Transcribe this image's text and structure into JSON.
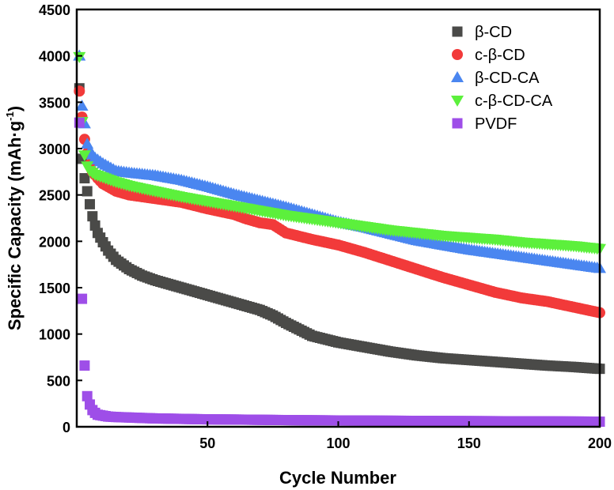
{
  "chart_data": {
    "type": "scatter",
    "xlabel": "Cycle Number",
    "ylabel": "Specific Capacity (mAh·g",
    "ylabel_sup": "-1",
    "ylabel_close": ")",
    "xlim": [
      0,
      200
    ],
    "ylim": [
      0,
      4500
    ],
    "x_ticks": [
      50,
      100,
      150,
      200
    ],
    "y_ticks": [
      0,
      500,
      1000,
      1500,
      2000,
      2500,
      3000,
      3500,
      4000,
      4500
    ],
    "grid": false,
    "legend_position": "top-right",
    "series": [
      {
        "name": "β-CD",
        "marker": "square",
        "color": "#4a4a48",
        "points": [
          [
            1,
            3650
          ],
          [
            2,
            2890
          ],
          [
            3,
            2680
          ],
          [
            4,
            2540
          ],
          [
            5,
            2400
          ],
          [
            6,
            2270
          ],
          [
            7,
            2170
          ],
          [
            8,
            2090
          ],
          [
            10,
            1990
          ],
          [
            12,
            1900
          ],
          [
            15,
            1800
          ],
          [
            20,
            1700
          ],
          [
            25,
            1630
          ],
          [
            30,
            1580
          ],
          [
            40,
            1500
          ],
          [
            50,
            1420
          ],
          [
            60,
            1340
          ],
          [
            70,
            1260
          ],
          [
            75,
            1200
          ],
          [
            80,
            1120
          ],
          [
            90,
            980
          ],
          [
            100,
            910
          ],
          [
            110,
            860
          ],
          [
            120,
            810
          ],
          [
            130,
            770
          ],
          [
            140,
            740
          ],
          [
            150,
            720
          ],
          [
            160,
            700
          ],
          [
            170,
            680
          ],
          [
            180,
            660
          ],
          [
            190,
            645
          ],
          [
            200,
            625
          ]
        ]
      },
      {
        "name": "c-β-CD",
        "marker": "circle",
        "color": "#f23a3a",
        "points": [
          [
            1,
            3620
          ],
          [
            2,
            3340
          ],
          [
            3,
            3100
          ],
          [
            4,
            2950
          ],
          [
            5,
            2830
          ],
          [
            6,
            2750
          ],
          [
            8,
            2680
          ],
          [
            10,
            2620
          ],
          [
            15,
            2540
          ],
          [
            20,
            2500
          ],
          [
            30,
            2460
          ],
          [
            40,
            2420
          ],
          [
            50,
            2350
          ],
          [
            60,
            2290
          ],
          [
            65,
            2240
          ],
          [
            70,
            2200
          ],
          [
            75,
            2180
          ],
          [
            80,
            2090
          ],
          [
            90,
            2020
          ],
          [
            100,
            1960
          ],
          [
            110,
            1880
          ],
          [
            120,
            1790
          ],
          [
            130,
            1700
          ],
          [
            140,
            1610
          ],
          [
            150,
            1530
          ],
          [
            160,
            1450
          ],
          [
            170,
            1390
          ],
          [
            180,
            1350
          ],
          [
            190,
            1290
          ],
          [
            200,
            1230
          ]
        ]
      },
      {
        "name": "β-CD-CA",
        "marker": "triangle-up",
        "color": "#4a86f0",
        "points": [
          [
            1,
            4000
          ],
          [
            2,
            3460
          ],
          [
            3,
            3270
          ],
          [
            4,
            3050
          ],
          [
            5,
            2970
          ],
          [
            7,
            2900
          ],
          [
            10,
            2840
          ],
          [
            15,
            2760
          ],
          [
            20,
            2740
          ],
          [
            30,
            2710
          ],
          [
            40,
            2660
          ],
          [
            50,
            2590
          ],
          [
            60,
            2510
          ],
          [
            70,
            2440
          ],
          [
            80,
            2370
          ],
          [
            90,
            2290
          ],
          [
            100,
            2210
          ],
          [
            110,
            2150
          ],
          [
            120,
            2080
          ],
          [
            130,
            2010
          ],
          [
            140,
            1960
          ],
          [
            150,
            1910
          ],
          [
            160,
            1870
          ],
          [
            170,
            1830
          ],
          [
            180,
            1790
          ],
          [
            190,
            1750
          ],
          [
            200,
            1710
          ]
        ]
      },
      {
        "name": "c-β-CD-CA",
        "marker": "triangle-down",
        "color": "#5cf03c",
        "points": [
          [
            1,
            3990
          ],
          [
            2,
            3290
          ],
          [
            3,
            2930
          ],
          [
            4,
            2810
          ],
          [
            5,
            2760
          ],
          [
            7,
            2720
          ],
          [
            10,
            2690
          ],
          [
            15,
            2640
          ],
          [
            20,
            2600
          ],
          [
            30,
            2540
          ],
          [
            40,
            2480
          ],
          [
            50,
            2430
          ],
          [
            60,
            2380
          ],
          [
            70,
            2330
          ],
          [
            80,
            2280
          ],
          [
            90,
            2240
          ],
          [
            100,
            2200
          ],
          [
            110,
            2160
          ],
          [
            120,
            2120
          ],
          [
            130,
            2090
          ],
          [
            140,
            2060
          ],
          [
            150,
            2040
          ],
          [
            160,
            2020
          ],
          [
            170,
            1990
          ],
          [
            180,
            1970
          ],
          [
            190,
            1950
          ],
          [
            200,
            1920
          ]
        ]
      },
      {
        "name": "PVDF",
        "marker": "square",
        "color": "#9e4ee8",
        "points": [
          [
            1,
            3280
          ],
          [
            2,
            1380
          ],
          [
            3,
            660
          ],
          [
            4,
            330
          ],
          [
            5,
            240
          ],
          [
            6,
            180
          ],
          [
            7,
            150
          ],
          [
            8,
            130
          ],
          [
            10,
            120
          ],
          [
            12,
            110
          ],
          [
            15,
            105
          ],
          [
            20,
            100
          ],
          [
            30,
            90
          ],
          [
            40,
            85
          ],
          [
            50,
            80
          ],
          [
            60,
            78
          ],
          [
            70,
            75
          ],
          [
            80,
            72
          ],
          [
            90,
            70
          ],
          [
            100,
            68
          ],
          [
            120,
            65
          ],
          [
            140,
            62
          ],
          [
            160,
            60
          ],
          [
            180,
            58
          ],
          [
            200,
            55
          ]
        ]
      }
    ]
  }
}
